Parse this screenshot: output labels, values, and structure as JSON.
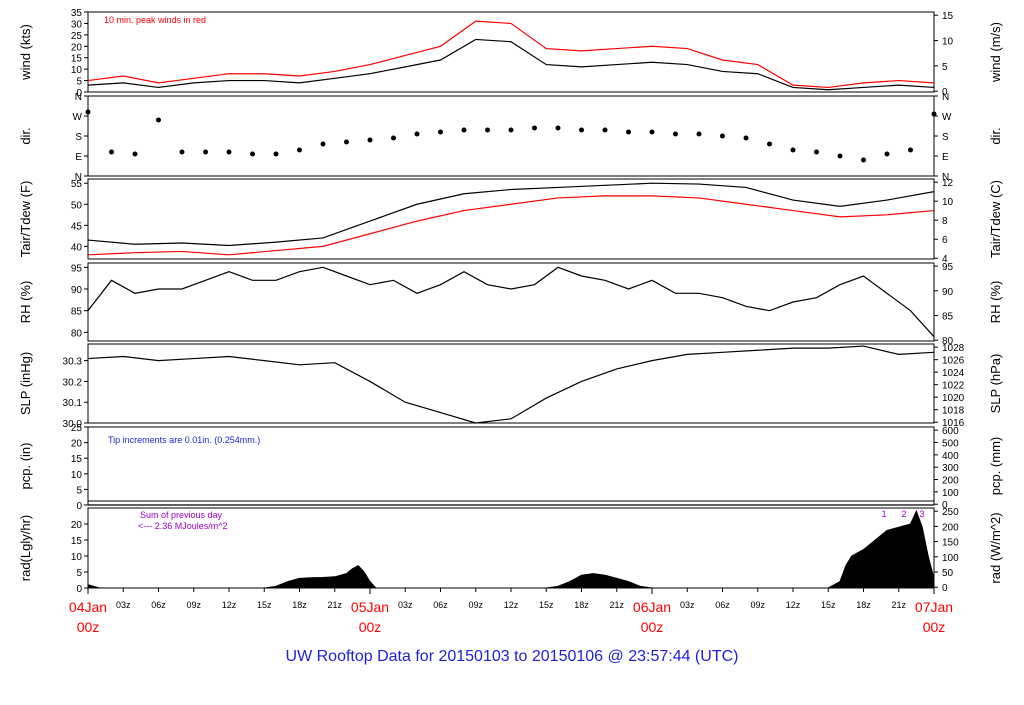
{
  "footer_title": "UW Rooftop Data for 20150103  to  20150106 @ 23:57:44  (UTC)",
  "colors": {
    "red": "#ff0000",
    "black": "#000000",
    "blue": "#1f1fd6",
    "purple": "#9900cc"
  },
  "chart_data": [
    {
      "type": "line",
      "name": "wind",
      "ylabel_left": "wind (kts)",
      "ylabel_right": "wind (m/s)",
      "ylim": [
        0,
        35
      ],
      "yticks_left": [
        0,
        5,
        10,
        15,
        20,
        25,
        30,
        35
      ],
      "yticks_right": [
        0,
        5,
        10,
        15
      ],
      "annotation": "10 min. peak winds in red",
      "series": [
        {
          "name": "",
          "color": "#000000",
          "x": [
            0,
            3,
            6,
            9,
            12,
            15,
            18,
            21,
            24,
            27,
            30,
            33,
            36,
            39,
            42,
            45,
            48,
            51,
            54,
            57,
            60,
            63,
            66,
            69,
            72
          ],
          "values": [
            3,
            4,
            2,
            4,
            5,
            5,
            4,
            6,
            8,
            11,
            14,
            23,
            22,
            12,
            11,
            12,
            13,
            12,
            9,
            8,
            2,
            1,
            2,
            3,
            2
          ]
        },
        {
          "name": "",
          "color": "#ff0000",
          "x": [
            0,
            3,
            6,
            9,
            12,
            15,
            18,
            21,
            24,
            27,
            30,
            33,
            36,
            39,
            42,
            45,
            48,
            51,
            54,
            57,
            60,
            63,
            66,
            69,
            72
          ],
          "values": [
            5,
            7,
            4,
            6,
            8,
            8,
            7,
            9,
            12,
            16,
            20,
            31,
            30,
            19,
            18,
            19,
            20,
            19,
            14,
            12,
            3,
            2,
            4,
            5,
            4
          ]
        }
      ]
    },
    {
      "type": "scatter",
      "name": "dir",
      "ylabel_left": "dir.",
      "ylabel_right": "dir.",
      "ylim": [
        0,
        4
      ],
      "yticks_labels": [
        "N",
        "E",
        "S",
        "W",
        "N"
      ],
      "series": [
        {
          "name": "",
          "color": "#000000",
          "x": [
            0,
            2,
            4,
            6,
            8,
            10,
            12,
            14,
            16,
            18,
            20,
            22,
            24,
            26,
            28,
            30,
            32,
            34,
            36,
            38,
            40,
            42,
            44,
            46,
            48,
            50,
            52,
            54,
            56,
            58,
            60,
            62,
            64,
            66,
            68,
            70,
            72
          ],
          "values": [
            3.2,
            1.2,
            1.1,
            2.8,
            1.2,
            1.2,
            1.2,
            1.1,
            1.1,
            1.3,
            1.6,
            1.7,
            1.8,
            1.9,
            2.1,
            2.2,
            2.3,
            2.3,
            2.3,
            2.4,
            2.4,
            2.3,
            2.3,
            2.2,
            2.2,
            2.1,
            2.1,
            2.0,
            1.9,
            1.6,
            1.3,
            1.2,
            1.0,
            0.8,
            1.1,
            1.3,
            3.1
          ]
        }
      ]
    },
    {
      "type": "line",
      "name": "temperature",
      "ylabel_left": "Tair/Tdew (F)",
      "ylabel_right": "Tair/Tdew (C)",
      "ylim": [
        37,
        56
      ],
      "yticks_left": [
        40,
        45,
        50,
        55
      ],
      "yticks_right": [
        4,
        6,
        8,
        10,
        12
      ],
      "series": [
        {
          "name": "",
          "color": "#000000",
          "x": [
            0,
            4,
            8,
            12,
            16,
            20,
            24,
            28,
            32,
            36,
            40,
            44,
            48,
            52,
            56,
            60,
            64,
            68,
            72
          ],
          "values": [
            41.5,
            40.5,
            40.8,
            40.2,
            41.0,
            42.0,
            46.0,
            50.0,
            52.5,
            53.5,
            54.0,
            54.5,
            55.0,
            54.8,
            54.0,
            51.0,
            49.5,
            51.0,
            53.0
          ]
        },
        {
          "name": "",
          "color": "#ff0000",
          "x": [
            0,
            4,
            8,
            12,
            16,
            20,
            24,
            28,
            32,
            36,
            40,
            44,
            48,
            52,
            56,
            60,
            64,
            68,
            72
          ],
          "values": [
            38.0,
            38.5,
            38.8,
            38.0,
            39.0,
            40.0,
            43.0,
            46.0,
            48.5,
            50.0,
            51.5,
            52.0,
            52.0,
            51.5,
            50.0,
            48.5,
            47.0,
            47.5,
            48.5
          ]
        }
      ]
    },
    {
      "type": "line",
      "name": "rh",
      "ylabel_left": "RH (%)",
      "ylabel_right": "RH (%)",
      "ylim": [
        78,
        96
      ],
      "yticks_left": [
        80,
        85,
        90,
        95
      ],
      "yticks_right": [
        80,
        85,
        90,
        95
      ],
      "series": [
        {
          "name": "",
          "color": "#000000",
          "x": [
            0,
            2,
            4,
            6,
            8,
            10,
            12,
            14,
            16,
            18,
            20,
            22,
            24,
            26,
            28,
            30,
            32,
            34,
            36,
            38,
            40,
            42,
            44,
            46,
            48,
            50,
            52,
            54,
            56,
            58,
            60,
            62,
            64,
            66,
            68,
            70,
            72
          ],
          "values": [
            85,
            92,
            89,
            90,
            90,
            92,
            94,
            92,
            92,
            94,
            95,
            93,
            91,
            92,
            89,
            91,
            94,
            91,
            90,
            91,
            95,
            93,
            92,
            90,
            92,
            89,
            89,
            88,
            86,
            85,
            87,
            88,
            91,
            93,
            89,
            85,
            79
          ]
        }
      ]
    },
    {
      "type": "line",
      "name": "slp",
      "ylabel_left": "SLP (inHg)",
      "ylabel_right": "SLP (hPa)",
      "ylim": [
        30.0,
        30.38
      ],
      "yticks_left_values": [
        30.0,
        30.1,
        30.2,
        30.3
      ],
      "yticks_left": [
        "30.0",
        "30.1",
        "30.2",
        "30.3"
      ],
      "yticks_right": [
        1016,
        1018,
        1020,
        1022,
        1024,
        1026,
        1028
      ],
      "series": [
        {
          "name": "",
          "color": "#000000",
          "x": [
            0,
            3,
            6,
            9,
            12,
            15,
            18,
            21,
            24,
            27,
            30,
            33,
            36,
            39,
            42,
            45,
            48,
            51,
            54,
            57,
            60,
            63,
            66,
            69,
            72
          ],
          "values": [
            30.31,
            30.32,
            30.3,
            30.31,
            30.32,
            30.3,
            30.28,
            30.29,
            30.2,
            30.1,
            30.05,
            30.0,
            30.02,
            30.12,
            30.2,
            30.26,
            30.3,
            30.33,
            30.34,
            30.35,
            30.36,
            30.36,
            30.37,
            30.33,
            30.34
          ]
        }
      ]
    },
    {
      "type": "line",
      "name": "precip",
      "ylabel_left": "pcp. (in)",
      "ylabel_right": "pcp. (mm)",
      "ylim": [
        0,
        25
      ],
      "yticks_left": [
        0,
        5,
        10,
        15,
        20,
        25
      ],
      "yticks_right": [
        0,
        100,
        200,
        300,
        400,
        500,
        600
      ],
      "annotation": "Tip increments are 0.01in. (0.254mm.)",
      "series": [
        {
          "name": "",
          "color": "#000000",
          "x": [
            0,
            72
          ],
          "values": [
            0,
            0
          ]
        }
      ]
    },
    {
      "type": "area",
      "name": "radiation",
      "ylabel_left": "rad(Lgly/hr)",
      "ylabel_right": "rad (W/m^2)",
      "ylim": [
        0,
        25
      ],
      "yticks_left": [
        0,
        5,
        10,
        15,
        20
      ],
      "yticks_right": [
        0,
        50,
        100,
        150,
        200,
        250
      ],
      "annotation_line1": "Sum of previous day",
      "annotation_line2": "<--- 2.36 MJoules/m^2",
      "day_markers": [
        "1",
        "2",
        "3"
      ],
      "series": [
        {
          "name": "",
          "color": "#000000",
          "x": [
            0,
            0.5,
            1,
            15,
            16,
            17,
            18,
            19,
            20,
            21,
            22,
            22.5,
            23,
            23.5,
            24,
            24.5,
            39,
            40,
            41,
            42,
            43,
            44,
            45,
            46,
            47,
            48,
            63,
            64,
            64.5,
            65,
            66,
            67,
            68,
            69,
            70,
            70.5,
            71,
            71.5,
            72
          ],
          "values": [
            1,
            0.5,
            0,
            0,
            0.5,
            2,
            3,
            3.2,
            3.3,
            3.5,
            4.5,
            6,
            7,
            5,
            2,
            0,
            0,
            0.5,
            2,
            4,
            4.5,
            4,
            3,
            2,
            0.5,
            0,
            0,
            2,
            7,
            10,
            12,
            15,
            18,
            19,
            20,
            24,
            19,
            10,
            3
          ]
        }
      ]
    }
  ],
  "xaxis": {
    "major": [
      {
        "x": 0,
        "date": "04Jan",
        "hour": "00z"
      },
      {
        "x": 24,
        "date": "05Jan",
        "hour": "00z"
      },
      {
        "x": 48,
        "date": "06Jan",
        "hour": "00z"
      },
      {
        "x": 72,
        "date": "07Jan",
        "hour": "00z"
      }
    ],
    "minor": [
      {
        "x": 3,
        "label": "03z"
      },
      {
        "x": 6,
        "label": "06z"
      },
      {
        "x": 9,
        "label": "09z"
      },
      {
        "x": 12,
        "label": "12z"
      },
      {
        "x": 15,
        "label": "15z"
      },
      {
        "x": 18,
        "label": "18z"
      },
      {
        "x": 21,
        "label": "21z"
      },
      {
        "x": 27,
        "label": "03z"
      },
      {
        "x": 30,
        "label": "06z"
      },
      {
        "x": 33,
        "label": "09z"
      },
      {
        "x": 36,
        "label": "12z"
      },
      {
        "x": 39,
        "label": "15z"
      },
      {
        "x": 42,
        "label": "18z"
      },
      {
        "x": 45,
        "label": "21z"
      },
      {
        "x": 51,
        "label": "03z"
      },
      {
        "x": 54,
        "label": "06z"
      },
      {
        "x": 57,
        "label": "09z"
      },
      {
        "x": 60,
        "label": "12z"
      },
      {
        "x": 63,
        "label": "15z"
      },
      {
        "x": 66,
        "label": "18z"
      },
      {
        "x": 69,
        "label": "21z"
      }
    ]
  }
}
